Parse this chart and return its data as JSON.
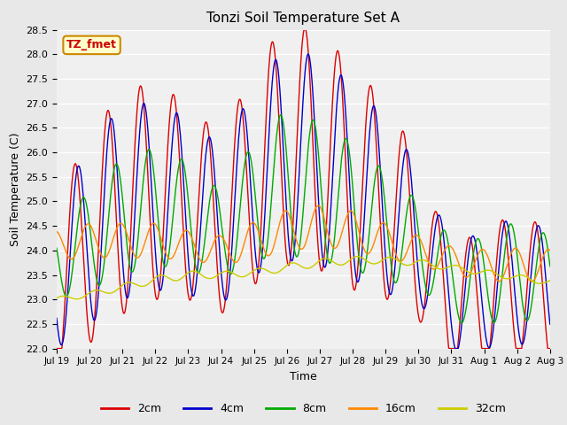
{
  "title": "Tonzi Soil Temperature Set A",
  "xlabel": "Time",
  "ylabel": "Soil Temperature (C)",
  "ylim": [
    22.0,
    28.5
  ],
  "yticks": [
    22.0,
    22.5,
    23.0,
    23.5,
    24.0,
    24.5,
    25.0,
    25.5,
    26.0,
    26.5,
    27.0,
    27.5,
    28.0,
    28.5
  ],
  "x_tick_labels": [
    "Jul 19",
    "Jul 20",
    "Jul 21",
    "Jul 22",
    "Jul 23",
    "Jul 24",
    "Jul 25",
    "Jul 26",
    "Jul 27",
    "Jul 28",
    "Jul 29",
    "Jul 30",
    "Jul 31",
    "Aug 1",
    "Aug 2",
    "Aug 3"
  ],
  "colors": {
    "2cm": "#dd0000",
    "4cm": "#0000cc",
    "8cm": "#00aa00",
    "16cm": "#ff8800",
    "32cm": "#cccc00"
  },
  "annotation_text": "TZ_fmet",
  "annotation_color": "#cc0000",
  "annotation_bg": "#ffffcc",
  "annotation_border": "#cc8800",
  "background_color": "#e8e8e8",
  "plot_bg_color": "#f0f0f0"
}
